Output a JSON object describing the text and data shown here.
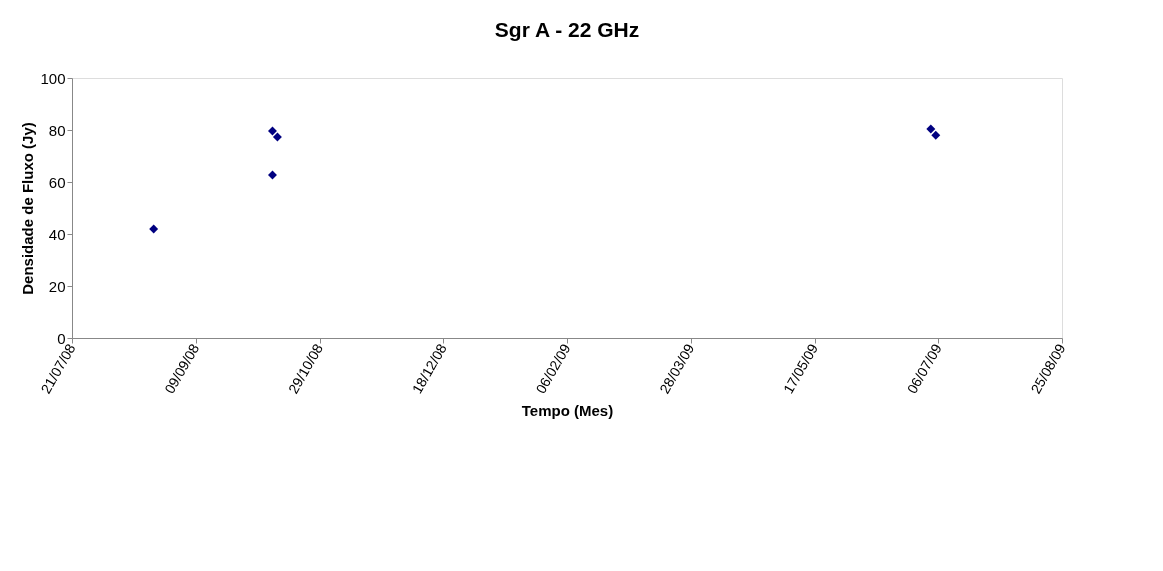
{
  "chart_data": {
    "type": "scatter",
    "title": "Sgr A - 22 GHz",
    "xlabel": "Tempo (Mes)",
    "ylabel": "Densidade de Fluxo (Jy)",
    "x": [
      "2008-08-23",
      "2008-10-10",
      "2008-10-10",
      "2008-10-12",
      "2009-07-03",
      "2009-07-05"
    ],
    "series": [
      {
        "color": "#000080",
        "values": [
          41.9,
          79.6,
          62.7,
          77.3,
          80.4,
          78
        ]
      }
    ],
    "xlim": [
      "2008-07-21",
      "2009-08-25"
    ],
    "xticks": [
      {
        "value": "2008-07-21",
        "label": "21/07/08"
      },
      {
        "value": "2008-09-09",
        "label": "09/09/08"
      },
      {
        "value": "2008-10-29",
        "label": "29/10/08"
      },
      {
        "value": "2008-12-18",
        "label": "18/12/08"
      },
      {
        "value": "2009-02-06",
        "label": "06/02/09"
      },
      {
        "value": "2009-03-28",
        "label": "28/03/09"
      },
      {
        "value": "2009-05-17",
        "label": "17/05/09"
      },
      {
        "value": "2009-07-06",
        "label": "06/07/09"
      },
      {
        "value": "2009-08-25",
        "label": "25/08/09"
      }
    ],
    "ylim": [
      0,
      100
    ],
    "yticks": [
      0,
      20,
      40,
      60,
      80,
      100
    ],
    "grid": false,
    "marker": "diamond"
  }
}
